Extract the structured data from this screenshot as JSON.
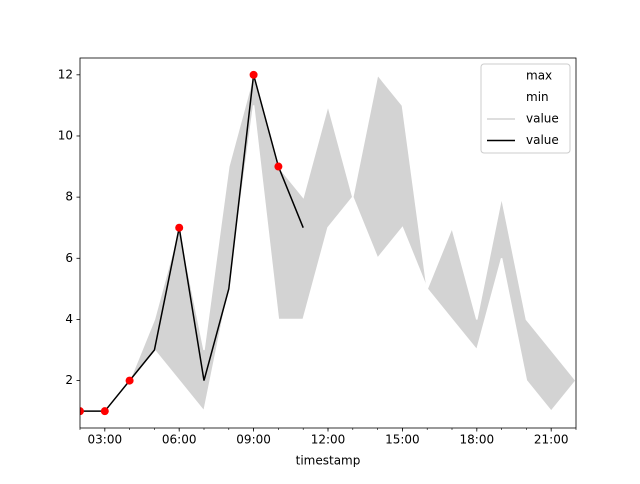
{
  "chart_data": {
    "type": "line",
    "x": [
      2,
      3,
      4,
      5,
      6,
      7,
      8,
      9,
      10,
      11,
      12,
      13,
      14,
      15,
      16,
      17,
      18,
      19,
      20,
      21,
      22
    ],
    "xlabel": "timestamp",
    "xlim": [
      2,
      22
    ],
    "xticks": [
      {
        "value": 3,
        "label": "03:00"
      },
      {
        "value": 6,
        "label": "06:00"
      },
      {
        "value": 9,
        "label": "09:00"
      },
      {
        "value": 12,
        "label": "12:00"
      },
      {
        "value": 15,
        "label": "15:00"
      },
      {
        "value": 18,
        "label": "18:00"
      },
      {
        "value": 21,
        "label": "21:00"
      }
    ],
    "ylim": [
      0.45,
      12.55
    ],
    "yticks": [
      2,
      4,
      6,
      8,
      10,
      12
    ],
    "series": [
      {
        "name": "max",
        "color": "white",
        "values": [
          1,
          1,
          2,
          4,
          7,
          3,
          9,
          12,
          9,
          8,
          11,
          8,
          12,
          11,
          5,
          7,
          4,
          8,
          4,
          3,
          2
        ]
      },
      {
        "name": "min",
        "color": "white",
        "values": [
          1,
          1,
          2,
          3,
          2,
          1,
          5,
          11,
          4,
          4,
          7,
          8,
          6,
          7,
          5,
          4,
          3,
          6,
          2,
          1,
          2
        ]
      },
      {
        "name": "value",
        "color": "lightgray",
        "fill_between": [
          0,
          1
        ]
      },
      {
        "name": "value",
        "color": "black",
        "values": [
          1,
          1,
          2,
          3,
          7,
          2,
          5,
          12,
          9,
          7,
          null,
          null,
          null,
          null,
          null,
          null,
          null,
          null,
          null,
          null,
          null
        ]
      }
    ],
    "markers": {
      "color": "red",
      "x": [
        2,
        3,
        4,
        6,
        9,
        10
      ],
      "values": [
        1,
        1,
        2,
        7,
        12,
        9
      ]
    },
    "legend": "upper right"
  }
}
